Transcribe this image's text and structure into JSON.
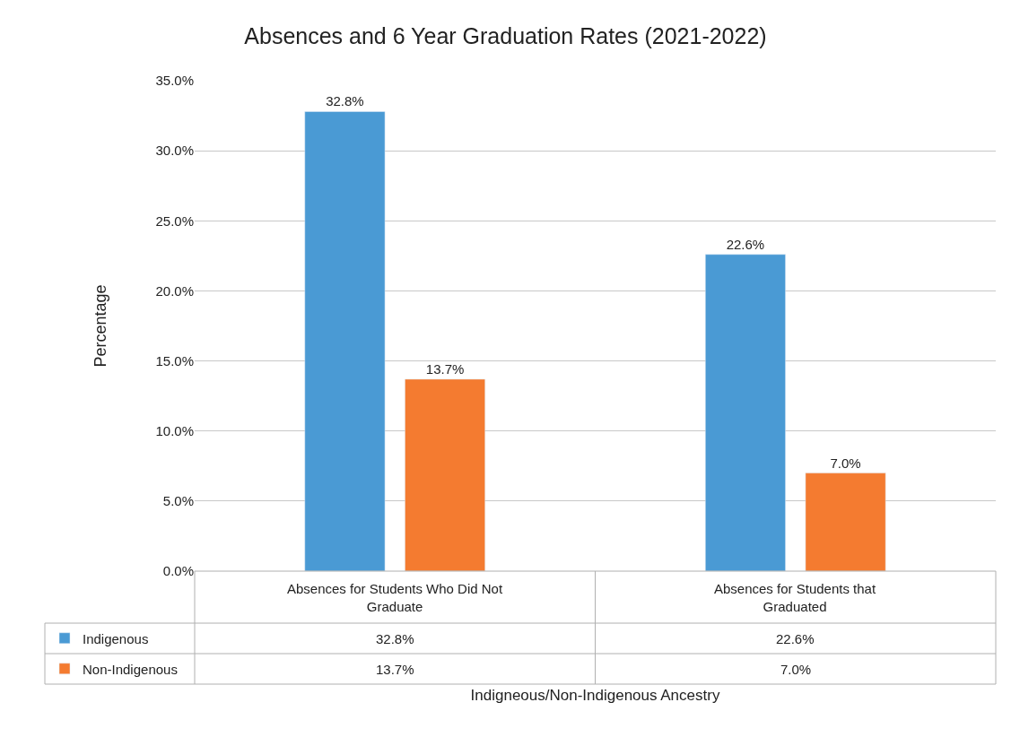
{
  "chart_data": {
    "type": "bar",
    "title": "Absences and 6 Year Graduation Rates (2021-2022)",
    "xlabel": "Indigneous/Non-Indigenous Ancestry",
    "ylabel": "Percentage",
    "categories": [
      "Absences for Students Who Did Not Graduate",
      "Absences for Students that Graduated"
    ],
    "series": [
      {
        "name": "Indigenous",
        "color": "#4a9ad4",
        "values": [
          32.8,
          22.6
        ],
        "value_labels": [
          "32.8%",
          "22.6%"
        ]
      },
      {
        "name": "Non-Indigenous",
        "color": "#f47b30",
        "values": [
          13.7,
          7.0
        ],
        "value_labels": [
          "13.7%",
          "7.0%"
        ]
      }
    ],
    "ylim": [
      0,
      35
    ],
    "yticks": [
      {
        "value": 0,
        "label": "0.0%"
      },
      {
        "value": 5,
        "label": "5.0%"
      },
      {
        "value": 10,
        "label": "10.0%"
      },
      {
        "value": 15,
        "label": "15.0%"
      },
      {
        "value": 20,
        "label": "20.0%"
      },
      {
        "value": 25,
        "label": "25.0%"
      },
      {
        "value": 30,
        "label": "30.0%"
      },
      {
        "value": 35,
        "label": "35.0%"
      }
    ],
    "grid": "y",
    "legend": "bottom left"
  }
}
